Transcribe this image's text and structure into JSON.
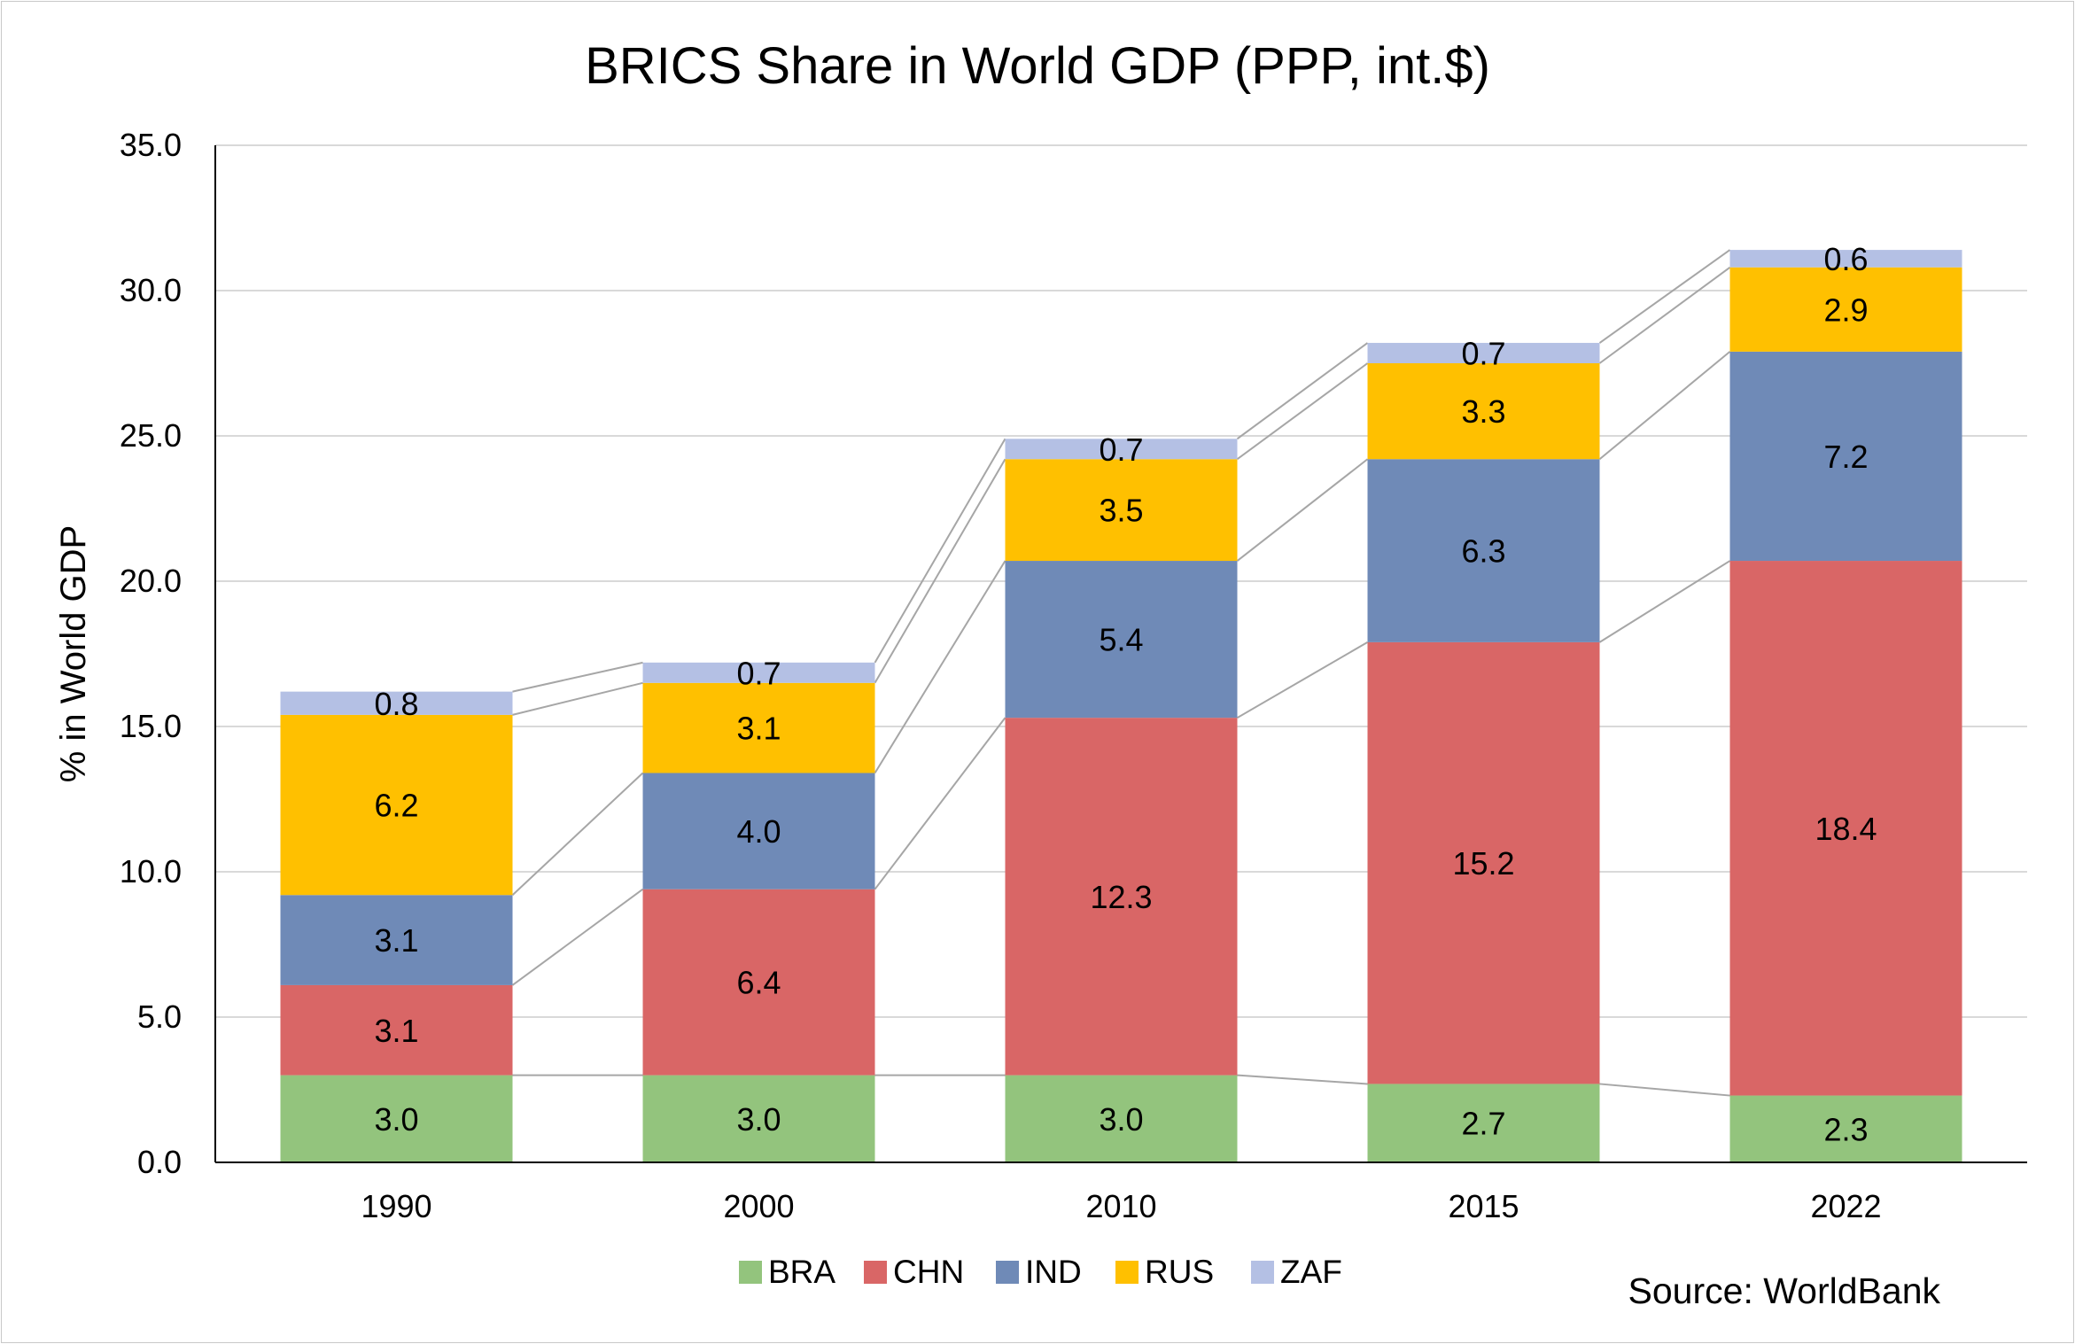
{
  "chart_data": {
    "type": "bar",
    "stacked": true,
    "title": "BRICS Share in World GDP (PPP, int.$)",
    "xlabel": "",
    "ylabel": "% in World GDP",
    "ylim": [
      0,
      35
    ],
    "y_ticks": [
      "0.0",
      "5.0",
      "10.0",
      "15.0",
      "20.0",
      "25.0",
      "30.0",
      "35.0"
    ],
    "categories": [
      "1990",
      "2000",
      "2010",
      "2015",
      "2022"
    ],
    "grid": true,
    "legend_position": "bottom",
    "series_connector_lines": true,
    "series": [
      {
        "name": "BRA",
        "color": "#93c47d",
        "values": [
          3.0,
          3.0,
          3.0,
          2.7,
          2.3
        ],
        "labels": [
          "3.0",
          "3.0",
          "3.0",
          "2.7",
          "2.3"
        ]
      },
      {
        "name": "CHN",
        "color": "#d96666",
        "values": [
          3.1,
          6.4,
          12.3,
          15.2,
          18.4
        ],
        "labels": [
          "3.1",
          "6.4",
          "12.3",
          "15.2",
          "18.4"
        ]
      },
      {
        "name": "IND",
        "color": "#6f8ab7",
        "values": [
          3.1,
          4.0,
          5.4,
          6.3,
          7.2
        ],
        "labels": [
          "3.1",
          "4.0",
          "5.4",
          "6.3",
          "7.2"
        ]
      },
      {
        "name": "RUS",
        "color": "#ffc000",
        "values": [
          6.2,
          3.1,
          3.5,
          3.3,
          2.9
        ],
        "labels": [
          "6.2",
          "3.1",
          "3.5",
          "3.3",
          "2.9"
        ]
      },
      {
        "name": "ZAF",
        "color": "#b4c0e4",
        "values": [
          0.8,
          0.7,
          0.7,
          0.7,
          0.6
        ],
        "labels": [
          "0.8",
          "0.7",
          "0.7",
          "0.7",
          "0.6"
        ]
      }
    ],
    "source_note": "Source: WorldBank"
  }
}
